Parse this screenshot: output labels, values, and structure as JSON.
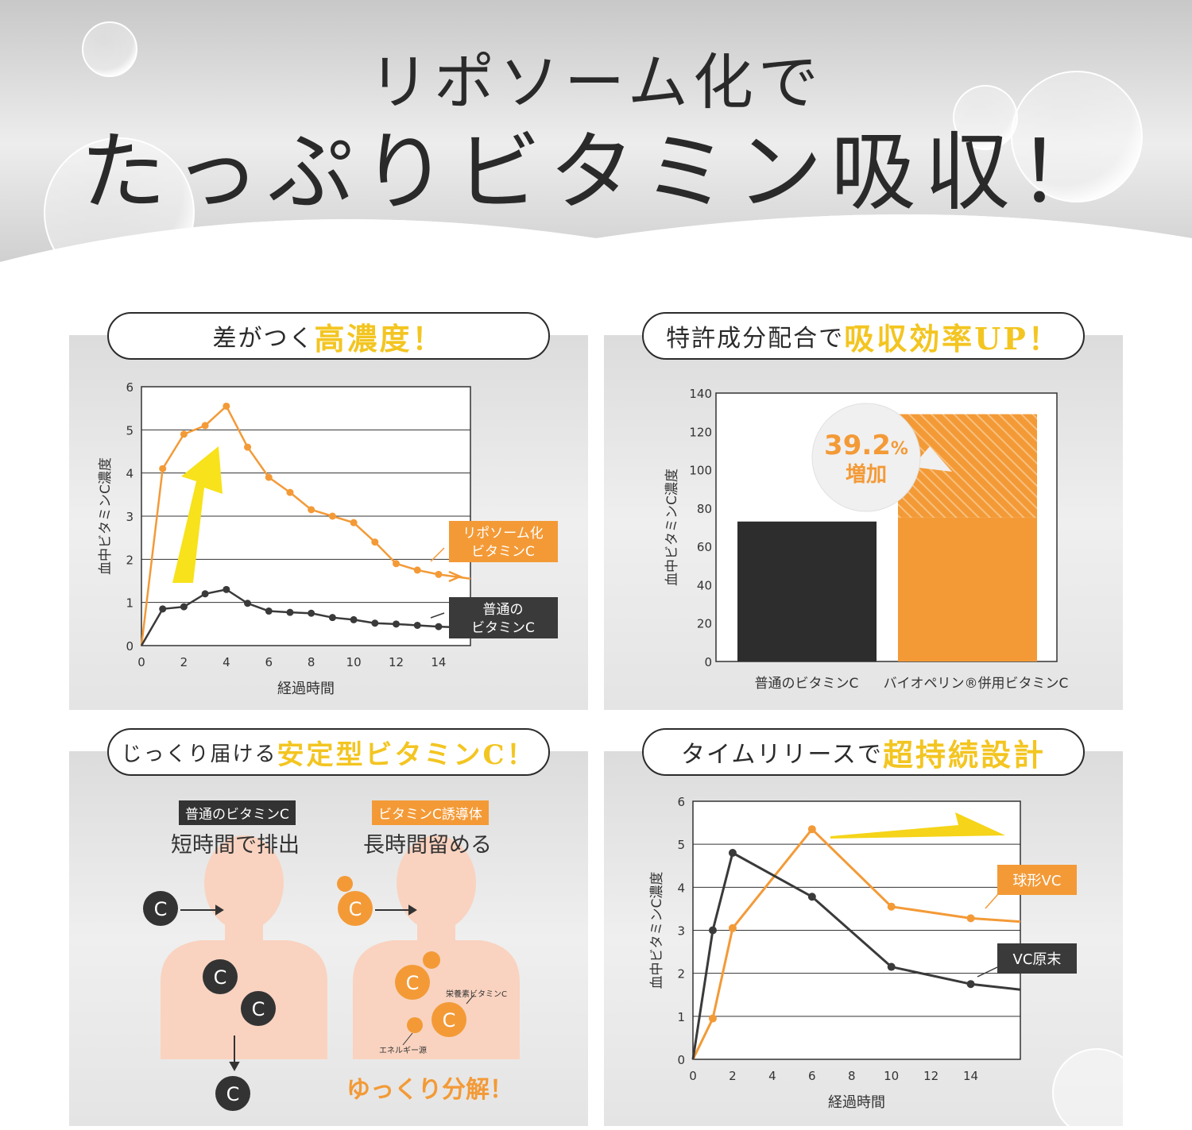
{
  "header": {
    "line1": "リポソーム化で",
    "line2": "たっぷりビタミン吸収！"
  },
  "colors": {
    "orange": "#f39a37",
    "dark": "#3a3a3a",
    "yellow": "#f3c521",
    "skin": "#f9d3c0"
  },
  "panel1": {
    "title_dark": "差がつく",
    "title_highlight": "高濃度！"
  },
  "panel2": {
    "title_dark": "特許成分配合で",
    "title_highlight": "吸収効率UP！",
    "bubble_value": "39.2",
    "bubble_unit": "%",
    "bubble_text": "増加"
  },
  "panel3": {
    "title_dark": "じっくり届ける",
    "title_highlight": "安定型ビタミンC！",
    "left_tag": "普通のビタミンC",
    "left_caption": "短時間で排出",
    "right_tag": "ビタミンC誘導体",
    "right_caption": "長時間留める",
    "molecule_letter": "C",
    "label_nutrient": "栄養素ビタミンC",
    "label_energy": "エネルギー源",
    "bottom_caption": "ゆっくり分解！"
  },
  "panel4": {
    "title_dark": "タイムリリースで",
    "title_highlight": "超持続設計"
  },
  "chart_data": [
    {
      "type": "line",
      "xlabel": "経過時間",
      "ylabel": "血中ビタミンC濃度",
      "xlim": [
        0,
        15.5
      ],
      "ylim": [
        0,
        6
      ],
      "xticks": [
        0,
        2,
        4,
        6,
        8,
        10,
        12,
        14
      ],
      "yticks": [
        0,
        1,
        2,
        3,
        4,
        5,
        6
      ],
      "grid": "horizontal",
      "series": [
        {
          "name": "リポソーム化 ビタミンC",
          "label_line1": "リポソーム化",
          "label_line2": "ビタミンC",
          "color": "#f39a37",
          "x": [
            0,
            1,
            2,
            3,
            4,
            5,
            6,
            7,
            8,
            9,
            10,
            11,
            12,
            13,
            14,
            15.5
          ],
          "y": [
            0,
            4.1,
            4.9,
            5.1,
            5.55,
            4.6,
            3.9,
            3.55,
            3.15,
            3.0,
            2.85,
            2.4,
            1.9,
            1.75,
            1.65,
            1.55
          ]
        },
        {
          "name": "普通の ビタミンC",
          "label_line1": "普通の",
          "label_line2": "ビタミンC",
          "color": "#3a3a3a",
          "x": [
            0,
            1,
            2,
            3,
            4,
            5,
            6,
            7,
            8,
            9,
            10,
            11,
            12,
            13,
            14,
            15
          ],
          "y": [
            0,
            0.85,
            0.9,
            1.2,
            1.3,
            0.98,
            0.8,
            0.77,
            0.75,
            0.65,
            0.6,
            0.52,
            0.5,
            0.47,
            0.44,
            0.42
          ]
        }
      ]
    },
    {
      "type": "bar",
      "ylabel": "血中ビタミンC濃度",
      "ylim": [
        0,
        140
      ],
      "yticks": [
        0,
        20,
        40,
        60,
        80,
        100,
        120,
        140
      ],
      "categories": [
        "普通のビタミンC",
        "バイオペリン®併用ビタミンC"
      ],
      "values": [
        73,
        129
      ],
      "baseline_in_second_bar": 75,
      "colors": [
        "#2d2d2d",
        "#f39a37"
      ]
    },
    {
      "type": "line",
      "xlabel": "経過時間",
      "ylabel": "血中ビタミンC濃度",
      "xlim": [
        0,
        16.5
      ],
      "ylim": [
        0,
        6
      ],
      "xticks": [
        0,
        2,
        4,
        6,
        8,
        10,
        12,
        14
      ],
      "yticks": [
        0,
        1,
        2,
        3,
        4,
        5,
        6
      ],
      "grid": "horizontal",
      "series": [
        {
          "name": "球形VC",
          "color": "#f39a37",
          "x": [
            0,
            1,
            2,
            6,
            10,
            14,
            16.5
          ],
          "y": [
            0,
            0.95,
            3.05,
            5.35,
            3.55,
            3.28,
            3.2
          ]
        },
        {
          "name": "VC原末",
          "color": "#3a3a3a",
          "x": [
            0,
            1,
            2,
            6,
            10,
            14,
            16.5
          ],
          "y": [
            0,
            3.0,
            4.8,
            3.78,
            2.15,
            1.75,
            1.62
          ]
        }
      ]
    }
  ]
}
